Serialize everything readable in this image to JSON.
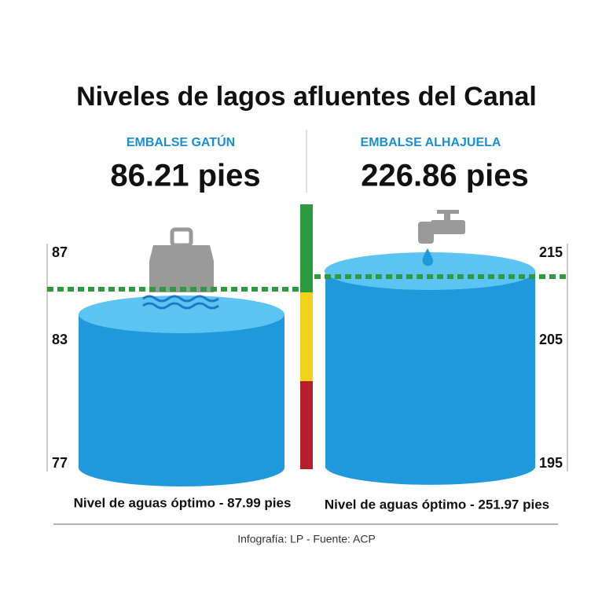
{
  "title": "Niveles de lagos afluentes del Canal",
  "reservoirs": [
    {
      "name": "EMBALSE GATÚN",
      "level": "86.21 pies",
      "optimum": "Nivel de aguas óptimo - 87.99 pies",
      "scale": [
        "87",
        "83",
        "77"
      ]
    },
    {
      "name": "EMBALSE ALHAJUELA",
      "level": "226.86 pies",
      "optimum": "Nivel de aguas óptimo - 251.97 pies",
      "scale": [
        "215",
        "205",
        "195"
      ]
    }
  ],
  "note": "Infografía: LP - Fuente: ACP"
}
